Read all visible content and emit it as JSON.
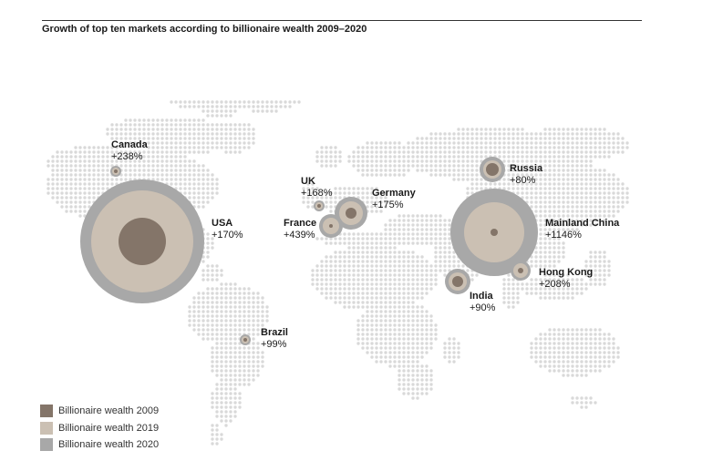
{
  "title": "Growth of top ten markets according to billionaire wealth 2009–2020",
  "colors": {
    "wealth_2009": "#847569",
    "wealth_2019": "#cbc0b3",
    "wealth_2020": "#a8a8a8",
    "map_dots": "#d9d9d9"
  },
  "legend": [
    {
      "label": "Billionaire wealth 2009",
      "color": "#847569"
    },
    {
      "label": "Billionaire wealth 2019",
      "color": "#cbc0b3"
    },
    {
      "label": "Billionaire wealth 2020",
      "color": "#a8a8a8"
    }
  ],
  "markets": [
    {
      "name": "Canada",
      "growth": "+238%"
    },
    {
      "name": "USA",
      "growth": "+170%"
    },
    {
      "name": "UK",
      "growth": "+168%"
    },
    {
      "name": "Germany",
      "growth": "+175%"
    },
    {
      "name": "France",
      "growth": "+439%"
    },
    {
      "name": "Russia",
      "growth": "+80%"
    },
    {
      "name": "Mainland China",
      "growth": "+1146%"
    },
    {
      "name": "Hong Kong",
      "growth": "+208%"
    },
    {
      "name": "India",
      "growth": "+90%"
    },
    {
      "name": "Brazil",
      "growth": "+99%"
    }
  ]
}
